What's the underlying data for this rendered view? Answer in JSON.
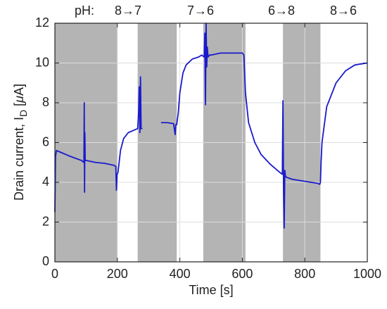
{
  "chart_data": {
    "type": "line",
    "annotations": [
      "pH:",
      "8→7",
      "7→6",
      "6→8",
      "8→6"
    ],
    "xlabel": "Time [s]",
    "ylabel": {
      "main": "Drain current, I",
      "sub": "D",
      "open": " [",
      "unit": "μ",
      "close": "A]"
    },
    "xlim": [
      0,
      1000
    ],
    "xticks": [
      0,
      200,
      400,
      600,
      800,
      1000
    ],
    "ylim": [
      0,
      12
    ],
    "yticks": [
      0,
      2,
      4,
      6,
      8,
      10,
      12
    ],
    "grid": true,
    "regions": [
      [
        0,
        200
      ],
      [
        265,
        390
      ],
      [
        475,
        610
      ],
      [
        730,
        850
      ]
    ],
    "region_color": "#b4b4b4",
    "series": [
      {
        "color": "#1a1acc",
        "x": [
          0,
          2,
          5,
          20,
          50,
          85,
          93,
          94,
          95,
          96,
          97,
          100,
          130,
          160,
          190,
          195,
          197,
          199,
          202,
          210,
          220,
          235,
          250,
          265,
          268,
          270,
          272,
          274,
          276,
          278,
          280,
          310,
          340,
          360,
          380,
          385,
          387,
          390,
          395,
          400,
          410,
          420,
          440,
          460,
          470,
          478,
          480,
          482,
          484,
          486,
          488,
          490,
          495,
          500,
          530,
          560,
          600,
          605,
          610,
          620,
          640,
          660,
          690,
          720,
          728,
          730,
          732,
          734,
          736,
          738,
          742,
          760,
          800,
          840,
          848,
          850,
          852,
          855,
          870,
          900,
          930,
          960,
          1000
        ],
        "values": [
          2.5,
          5.3,
          5.6,
          5.5,
          5.3,
          5.1,
          5.0,
          8.0,
          3.5,
          6.5,
          5.1,
          5.1,
          5.0,
          4.95,
          4.85,
          4.8,
          3.6,
          4.4,
          4.5,
          5.6,
          6.2,
          6.5,
          6.6,
          6.7,
          7.5,
          8.8,
          6.5,
          9.3,
          6.7,
          6.7,
          6.7,
          null,
          7.0,
          7.0,
          6.95,
          6.4,
          6.9,
          6.9,
          7.5,
          8.5,
          9.5,
          9.9,
          10.2,
          10.3,
          10.4,
          10.3,
          11.5,
          7.9,
          12.0,
          9.8,
          10.8,
          10.3,
          10.4,
          10.4,
          10.5,
          10.5,
          10.5,
          10.4,
          8.5,
          7.0,
          6.0,
          5.4,
          4.9,
          4.5,
          4.4,
          8.1,
          3.5,
          1.7,
          4.6,
          4.3,
          4.25,
          4.15,
          4.05,
          3.95,
          3.9,
          4.0,
          5.0,
          6.0,
          7.8,
          9.0,
          9.6,
          9.9,
          10.0
        ]
      }
    ]
  }
}
